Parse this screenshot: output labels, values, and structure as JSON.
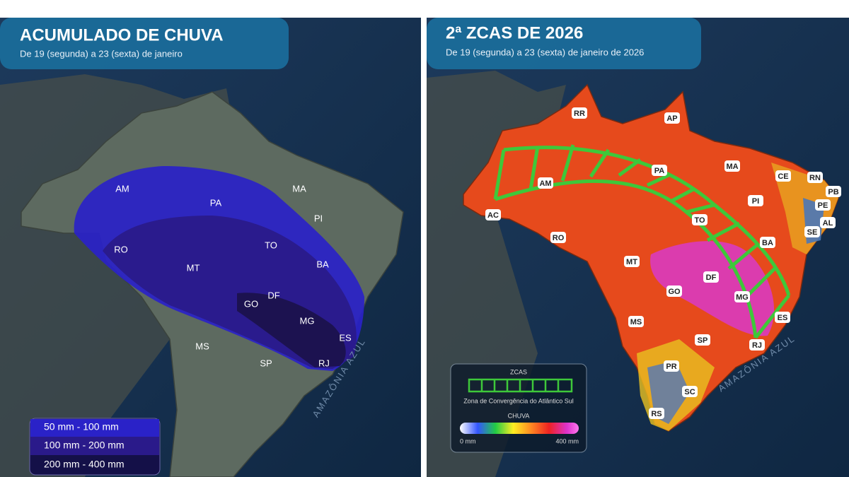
{
  "left_panel": {
    "title": "ACUMULADO DE CHUVA",
    "subtitle": "De 19 (segunda) a 23 (sexta) de janeiro",
    "state_labels": [
      "AM",
      "PA",
      "MA",
      "PI",
      "RO",
      "MT",
      "TO",
      "BA",
      "GO",
      "DF",
      "MG",
      "ES",
      "MS",
      "SP",
      "RJ"
    ],
    "ocean_label": "AMAZÔNIA AZUL",
    "legend": [
      "50 mm - 100 mm",
      "100 mm - 200 mm",
      "200 mm - 400 mm"
    ]
  },
  "right_panel": {
    "title": "2ª ZCAS DE 2026",
    "subtitle": "De 19 (segunda) a 23 (sexta) de janeiro de 2026",
    "state_labels": [
      "RR",
      "AP",
      "AM",
      "PA",
      "MA",
      "CE",
      "RN",
      "PB",
      "PE",
      "AL",
      "SE",
      "PI",
      "AC",
      "RO",
      "TO",
      "BA",
      "MT",
      "DF",
      "GO",
      "MG",
      "ES",
      "MS",
      "SP",
      "RJ",
      "PR",
      "SC",
      "RS"
    ],
    "ocean_label": "AMAZÔNIA AZUL",
    "legend": {
      "zcas_title": "ZCAS",
      "zcas_label": "Zona de Convergência do Atlântico Sul",
      "rain_title": "CHUVA",
      "min_label": "0 mm",
      "max_label": "400 mm"
    }
  }
}
